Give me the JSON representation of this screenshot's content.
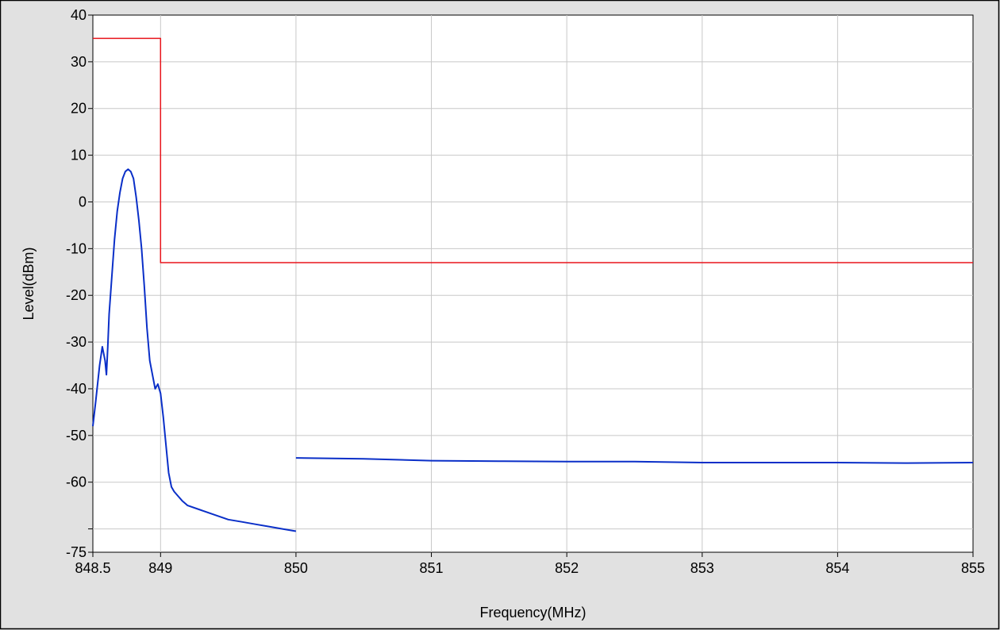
{
  "chart_data": {
    "type": "line",
    "xlabel": "Frequency(MHz)",
    "ylabel": "Level(dBm)",
    "xlim": [
      848.5,
      855
    ],
    "ylim": [
      -75,
      40
    ],
    "x_ticks": [
      848.5,
      849,
      850,
      851,
      852,
      853,
      854,
      855
    ],
    "x_tick_labels": [
      "848.5",
      "849",
      "850",
      "851",
      "852",
      "853",
      "854",
      "855"
    ],
    "y_ticks": [
      40,
      30,
      20,
      10,
      0,
      -10,
      -20,
      -30,
      -40,
      -50,
      -60,
      -70,
      -75
    ],
    "y_tick_labels": [
      "40",
      "30",
      "20",
      "10",
      "0",
      "-10",
      "-20",
      "-30",
      "-40",
      "-50",
      "-60",
      "",
      "-75"
    ],
    "grid": true,
    "colors": {
      "plot_bg": "#ffffff",
      "outer_bg": "#e1e1e1",
      "grid": "#c8c8c8",
      "limit_line": "#e8141c",
      "spectrum": "#0a2fc8"
    },
    "series": [
      {
        "x": [
          848.5,
          849,
          849,
          855
        ],
        "y": [
          35,
          35,
          -13,
          -13
        ]
      },
      {
        "x": [
          848.5,
          848.52,
          848.55,
          848.57,
          848.59,
          848.6,
          848.61,
          848.62,
          848.64,
          848.66,
          848.68,
          848.7,
          848.72,
          848.74,
          848.76,
          848.78,
          848.8,
          848.82,
          848.84,
          848.86,
          848.88,
          848.9,
          848.92,
          848.94,
          848.96,
          848.98,
          849.0,
          849.02,
          849.04,
          849.06,
          849.08,
          849.1,
          849.13,
          849.16,
          849.2,
          849.3,
          849.4,
          849.5,
          849.6,
          849.7,
          849.8,
          849.9,
          850.0
        ],
        "y": [
          -48,
          -43,
          -35,
          -31,
          -34,
          -37,
          -31,
          -24,
          -16,
          -8,
          -2,
          2,
          5,
          6.5,
          7,
          6.5,
          5,
          1,
          -4,
          -10,
          -18,
          -27,
          -34,
          -37,
          -40,
          -39,
          -41,
          -46,
          -52,
          -58,
          -61,
          -62,
          -63,
          -64,
          -65,
          -66,
          -67,
          -68,
          -68.5,
          -69,
          -69.5,
          -70,
          -70.5
        ]
      },
      {
        "x": [
          850.0,
          850.5,
          851,
          851.5,
          852,
          852.5,
          853,
          853.5,
          854,
          854.5,
          855
        ],
        "y": [
          -54.8,
          -55,
          -55.4,
          -55.5,
          -55.6,
          -55.6,
          -55.8,
          -55.8,
          -55.8,
          -55.9,
          -55.8
        ]
      }
    ]
  }
}
